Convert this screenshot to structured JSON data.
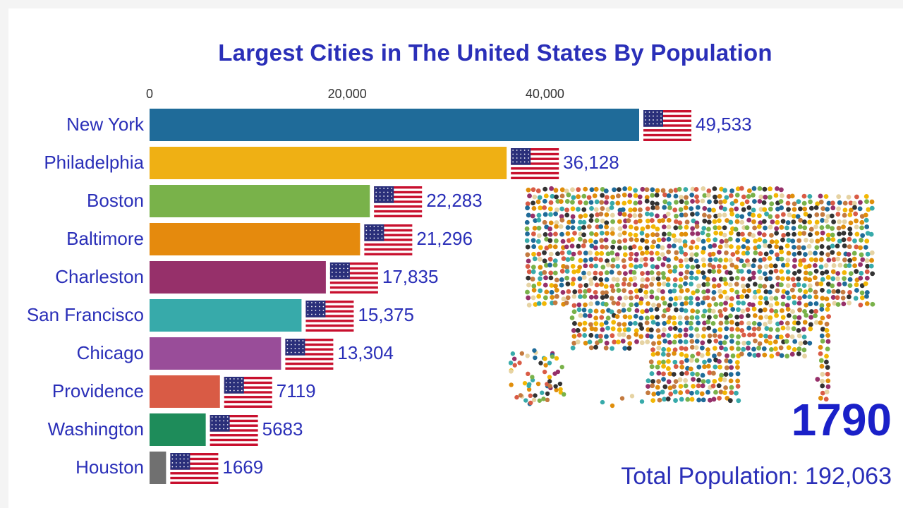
{
  "chart_data": {
    "type": "bar",
    "title": "Largest Cities in The United States By Population",
    "orientation": "horizontal",
    "axis": {
      "ticks": [
        0,
        20000,
        40000
      ],
      "tick_labels": [
        "0",
        "20,000",
        "40,000"
      ],
      "position": "top"
    },
    "bars": [
      {
        "category": "New York",
        "value": 49533,
        "label": "49,533",
        "color": "#1f6b99"
      },
      {
        "category": "Philadelphia",
        "value": 36128,
        "label": "36,128",
        "color": "#efb014"
      },
      {
        "category": "Boston",
        "value": 22283,
        "label": "22,283",
        "color": "#79b24a"
      },
      {
        "category": "Baltimore",
        "value": 21296,
        "label": "21,296",
        "color": "#e58a0d"
      },
      {
        "category": "Charleston",
        "value": 17835,
        "label": "17,835",
        "color": "#96306a"
      },
      {
        "category": "San Francisco",
        "value": 15375,
        "label": "15,375",
        "color": "#37aaaa"
      },
      {
        "category": "Chicago",
        "value": 13304,
        "label": "13,304",
        "color": "#994d99"
      },
      {
        "category": "Providence",
        "value": 7119,
        "label": "7119",
        "color": "#d95b45"
      },
      {
        "category": "Washington",
        "value": 5683,
        "label": "5683",
        "color": "#1e8c5a"
      },
      {
        "category": "Houston",
        "value": 1669,
        "label": "1669",
        "color": "#707070"
      }
    ],
    "bar_icon": "us-flag-icon"
  },
  "year": "1790",
  "total_population": "Total Population: 192,063",
  "colors": {
    "title": "#2a2fb8",
    "labels": "#2a2fb8",
    "year": "#1a20c8"
  },
  "decoration": "crowd-shaped-us-map"
}
